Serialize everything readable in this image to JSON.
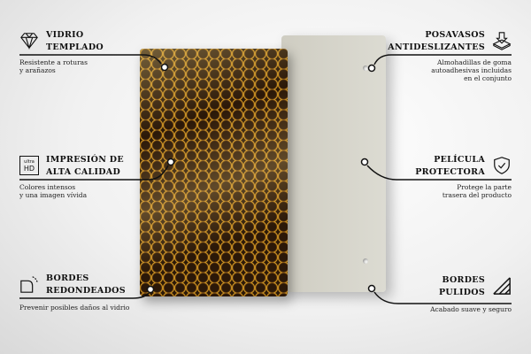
{
  "features": {
    "tempered_glass": {
      "title_1": "VIDRIO",
      "title_2": "TEMPLADO",
      "desc_1": "Resistente a roturas",
      "desc_2": "y arañazos",
      "icon": "diamond-icon"
    },
    "hd_print": {
      "title_1": "IMPRESIÓN DE",
      "title_2": "ALTA CALIDAD",
      "desc_1": "Colores intensos",
      "desc_2": "y una imagen vívida",
      "icon": "ultra-hd-icon",
      "icon_text_1": "ultra",
      "icon_text_2": "HD"
    },
    "rounded_edges": {
      "title_1": "BORDES",
      "title_2": "REDONDEADOS",
      "desc_1": "Prevenir posibles daños al vidrio",
      "icon": "rounded-corner-icon"
    },
    "non_slip": {
      "title_1": "POSAVASOS",
      "title_2": "ANTIDESLIZANTES",
      "desc_1": "Almohadillas de goma",
      "desc_2": "autoadhesivas incluidas",
      "desc_3": "en el conjunto",
      "icon": "layers-arrow-down-icon"
    },
    "protective_film": {
      "title_1": "PELÍCULA",
      "title_2": "PROTECTORA",
      "desc_1": "Protege la parte",
      "desc_2": "trasera del producto",
      "icon": "shield-check-icon"
    },
    "polished_edges": {
      "title_1": "BORDES",
      "title_2": "PULIDOS",
      "desc_1": "Acabado suave y seguro",
      "icon": "polished-edge-icon"
    }
  },
  "colors": {
    "honey": "#e7a826",
    "cell": "#2b1808",
    "back_panel": "#d6d5cb"
  }
}
